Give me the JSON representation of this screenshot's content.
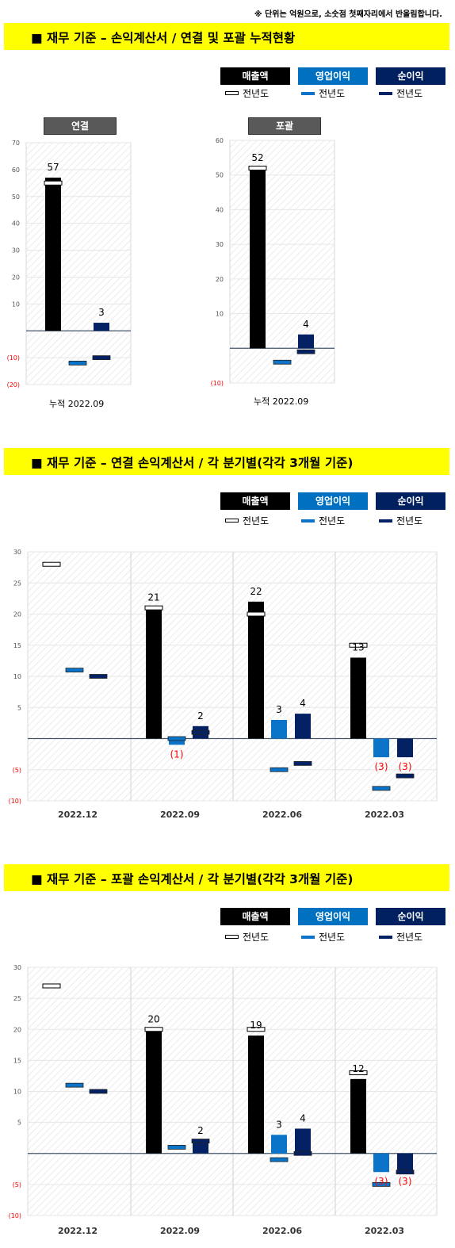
{
  "note": "※ 단위는 억원으로, 소숫점 첫째자리에서 반올림합니다.",
  "legend": {
    "box_labels": [
      "매출액",
      "영업이익",
      "순이익"
    ],
    "box_colors": [
      "#000000",
      "#0070c0",
      "#002060"
    ],
    "prev_label": "전년도"
  },
  "colors": {
    "sales": "#000000",
    "op": "#0b74c8",
    "net": "#032163",
    "neg_label": "#ff0000",
    "banner": "#ffff00"
  },
  "section1": {
    "title": "■ 재무 기준 – 손익계산서 / 연결 및 포괄 누적현황",
    "panels": [
      {
        "tag": "연결",
        "xlabel": "누적 2022.09"
      },
      {
        "tag": "포괄",
        "xlabel": "누적 2022.09"
      }
    ]
  },
  "section2": {
    "title": "■ 재무 기준 – 연결 손익계산서 / 각 분기별(각각 3개월 기준)"
  },
  "section3": {
    "title": "■ 재무 기준 – 포괄 손익계산서 / 각 분기별(각각 3개월 기준)"
  },
  "chart_data": [
    {
      "type": "bar",
      "title": "연결",
      "categories": [
        "누적 2022.09"
      ],
      "ylim": [
        -20,
        70
      ],
      "yticks": [
        -20,
        -10,
        10,
        20,
        30,
        40,
        50,
        60,
        70
      ],
      "series": [
        {
          "name": "매출액",
          "values": [
            57
          ],
          "labels": [
            "57"
          ],
          "prev": [
            55
          ]
        },
        {
          "name": "영업이익",
          "values": [
            0
          ],
          "labels": [
            ""
          ],
          "prev": [
            -12
          ]
        },
        {
          "name": "순이익",
          "values": [
            3
          ],
          "labels": [
            "3"
          ],
          "prev": [
            -10
          ]
        }
      ],
      "prev_name": "전년도"
    },
    {
      "type": "bar",
      "title": "포괄",
      "categories": [
        "누적 2022.09"
      ],
      "ylim": [
        -10,
        60
      ],
      "yticks": [
        -10,
        10,
        20,
        30,
        40,
        50,
        60
      ],
      "series": [
        {
          "name": "매출액",
          "values": [
            52
          ],
          "labels": [
            "52"
          ],
          "prev": [
            52
          ]
        },
        {
          "name": "영업이익",
          "values": [
            0
          ],
          "labels": [
            ""
          ],
          "prev": [
            -4
          ]
        },
        {
          "name": "순이익",
          "values": [
            4
          ],
          "labels": [
            "4"
          ],
          "prev": [
            -1
          ]
        }
      ],
      "prev_name": "전년도"
    },
    {
      "type": "bar",
      "title": "",
      "categories": [
        "2022.12",
        "2022.09",
        "2022.06",
        "2022.03"
      ],
      "ylim": [
        -10,
        30
      ],
      "yticks": [
        -10,
        -5,
        5,
        10,
        15,
        20,
        25,
        30
      ],
      "series": [
        {
          "name": "매출액",
          "values": [
            null,
            21,
            22,
            13
          ],
          "labels": [
            "",
            "21",
            "22",
            "13"
          ],
          "prev": [
            28,
            21,
            20,
            15
          ]
        },
        {
          "name": "영업이익",
          "values": [
            null,
            -1,
            3,
            -3
          ],
          "labels": [
            "",
            "(1)",
            "3",
            "(3)"
          ],
          "prev": [
            11,
            0,
            -5,
            -8
          ]
        },
        {
          "name": "순이익",
          "values": [
            null,
            2,
            4,
            -3
          ],
          "labels": [
            "",
            "2",
            "4",
            "(3)"
          ],
          "prev": [
            10,
            1,
            -4,
            -6
          ]
        }
      ],
      "prev_name": "전년도"
    },
    {
      "type": "bar",
      "title": "",
      "categories": [
        "2022.12",
        "2022.09",
        "2022.06",
        "2022.03"
      ],
      "ylim": [
        -10,
        30
      ],
      "yticks": [
        -10,
        -5,
        5,
        10,
        15,
        20,
        25,
        30
      ],
      "series": [
        {
          "name": "매출액",
          "values": [
            null,
            20,
            19,
            12
          ],
          "labels": [
            "",
            "20",
            "19",
            "12"
          ],
          "prev": [
            27,
            20,
            20,
            13
          ]
        },
        {
          "name": "영업이익",
          "values": [
            null,
            0,
            3,
            -3
          ],
          "labels": [
            "",
            "",
            "3",
            "(3)"
          ],
          "prev": [
            11,
            1,
            -1,
            -5
          ]
        },
        {
          "name": "순이익",
          "values": [
            null,
            2,
            4,
            -3
          ],
          "labels": [
            "",
            "2",
            "4",
            "(3)"
          ],
          "prev": [
            10,
            2,
            0,
            -3
          ]
        }
      ],
      "prev_name": "전년도"
    }
  ]
}
